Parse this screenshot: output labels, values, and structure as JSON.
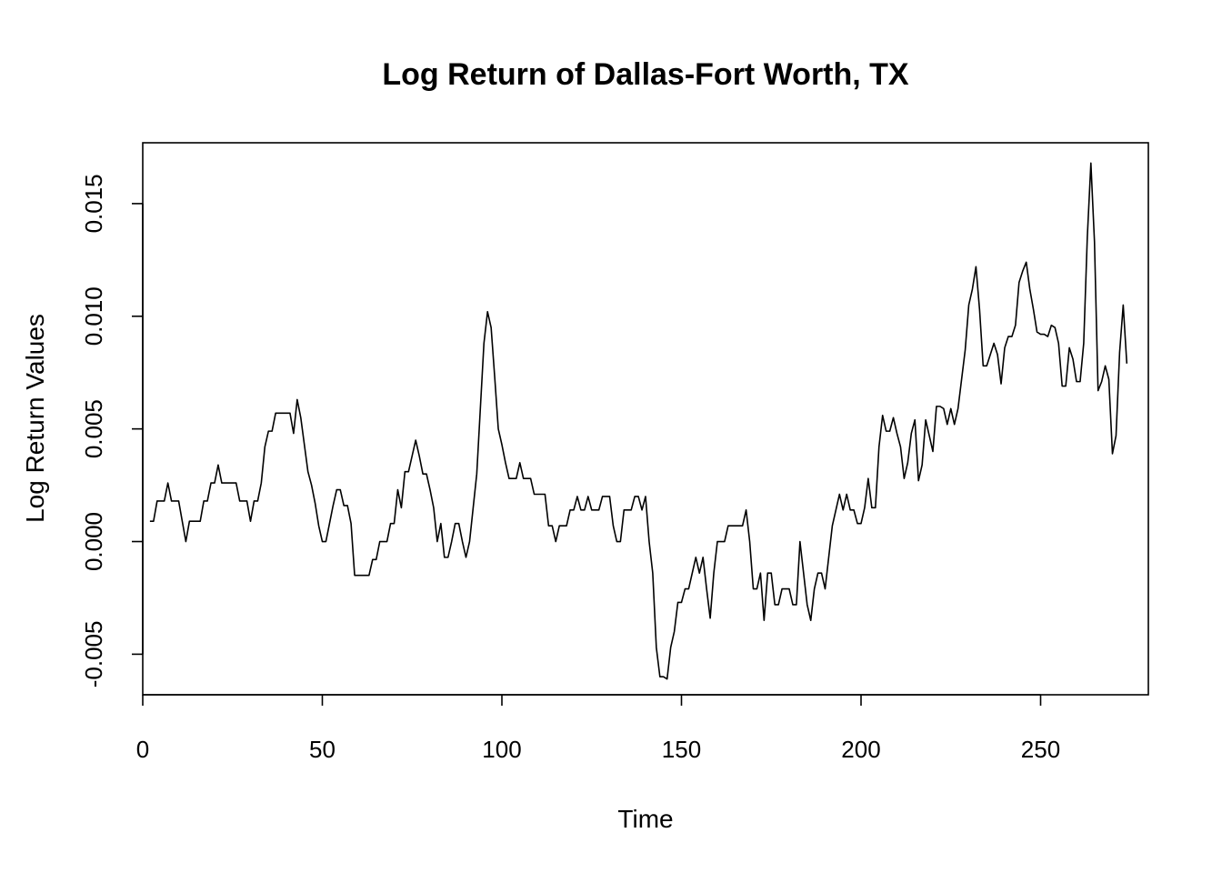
{
  "chart_data": {
    "type": "line",
    "title": "Log Return of Dallas-Fort Worth, TX",
    "xlabel": "Time",
    "ylabel": "Log Return Values",
    "xlim": [
      0,
      280
    ],
    "ylim": [
      -0.0068,
      0.0177
    ],
    "x_ticks": [
      0,
      50,
      100,
      150,
      200,
      250
    ],
    "x_tick_labels": [
      "0",
      "50",
      "100",
      "150",
      "200",
      "250"
    ],
    "y_ticks": [
      -0.005,
      0.0,
      0.005,
      0.01,
      0.015
    ],
    "y_tick_labels": [
      "-0.005",
      "0.000",
      "0.005",
      "0.010",
      "0.015"
    ],
    "grid": false,
    "legend": "none",
    "series": [
      {
        "x_start": 2,
        "values": [
          0.0009,
          0.0009,
          0.0018,
          0.0018,
          0.0018,
          0.0026,
          0.0018,
          0.0018,
          0.0018,
          0.0009,
          0.0,
          0.0009,
          0.0009,
          0.0009,
          0.0009,
          0.0018,
          0.0018,
          0.0026,
          0.0026,
          0.0034,
          0.0026,
          0.0026,
          0.0026,
          0.0026,
          0.0026,
          0.0018,
          0.0018,
          0.0018,
          0.0009,
          0.0018,
          0.0018,
          0.0026,
          0.0042,
          0.0049,
          0.0049,
          0.0057,
          0.0057,
          0.0057,
          0.0057,
          0.0057,
          0.0048,
          0.0063,
          0.0055,
          0.0043,
          0.0031,
          0.0025,
          0.0017,
          0.0007,
          0.0,
          0.0,
          0.0008,
          0.0016,
          0.0023,
          0.0023,
          0.0016,
          0.0016,
          0.0008,
          -0.0015,
          -0.0015,
          -0.0015,
          -0.0015,
          -0.0015,
          -0.0008,
          -0.0008,
          0.0,
          0.0,
          0.0,
          0.0008,
          0.0008,
          0.0023,
          0.0015,
          0.0031,
          0.0031,
          0.0038,
          0.0045,
          0.0038,
          0.003,
          0.003,
          0.0023,
          0.0015,
          0.0,
          0.0008,
          -0.0007,
          -0.0007,
          0.0,
          0.0008,
          0.0008,
          0.0,
          -0.0007,
          0.0,
          0.0015,
          0.003,
          0.0059,
          0.0088,
          0.0102,
          0.0095,
          0.0073,
          0.005,
          0.0043,
          0.0035,
          0.0028,
          0.0028,
          0.0028,
          0.0035,
          0.0028,
          0.0028,
          0.0028,
          0.0021,
          0.0021,
          0.0021,
          0.0021,
          0.0007,
          0.0007,
          0.0,
          0.0007,
          0.0007,
          0.0007,
          0.0014,
          0.0014,
          0.002,
          0.0014,
          0.0014,
          0.002,
          0.0014,
          0.0014,
          0.0014,
          0.002,
          0.002,
          0.002,
          0.0007,
          0.0,
          0.0,
          0.0014,
          0.0014,
          0.0014,
          0.002,
          0.002,
          0.0014,
          0.002,
          0.0,
          -0.0014,
          -0.0047,
          -0.006,
          -0.006,
          -0.0061,
          -0.0047,
          -0.004,
          -0.0027,
          -0.0027,
          -0.0021,
          -0.0021,
          -0.0014,
          -0.0007,
          -0.0014,
          -0.0007,
          -0.0021,
          -0.0034,
          -0.0014,
          0.0,
          0.0,
          0.0,
          0.0007,
          0.0007,
          0.0007,
          0.0007,
          0.0007,
          0.0014,
          0.0,
          -0.0021,
          -0.0021,
          -0.0014,
          -0.0035,
          -0.0014,
          -0.0014,
          -0.0028,
          -0.0028,
          -0.0021,
          -0.0021,
          -0.0021,
          -0.0028,
          -0.0028,
          0.0,
          -0.0014,
          -0.0028,
          -0.0035,
          -0.0021,
          -0.0014,
          -0.0014,
          -0.0021,
          -0.0007,
          0.0007,
          0.0014,
          0.0021,
          0.0014,
          0.0021,
          0.0014,
          0.0014,
          0.0008,
          0.0008,
          0.0015,
          0.0028,
          0.0015,
          0.0015,
          0.0042,
          0.0056,
          0.0049,
          0.0049,
          0.0055,
          0.0048,
          0.0042,
          0.0028,
          0.0035,
          0.0048,
          0.0054,
          0.0027,
          0.0034,
          0.0054,
          0.0047,
          0.004,
          0.006,
          0.006,
          0.0059,
          0.0052,
          0.0059,
          0.0052,
          0.0059,
          0.0072,
          0.0085,
          0.0105,
          0.0112,
          0.0122,
          0.0103,
          0.0078,
          0.0078,
          0.0083,
          0.0088,
          0.0083,
          0.007,
          0.0086,
          0.0091,
          0.0091,
          0.0096,
          0.0115,
          0.012,
          0.0124,
          0.0112,
          0.0103,
          0.0093,
          0.0092,
          0.0092,
          0.0091,
          0.0096,
          0.0095,
          0.0088,
          0.0069,
          0.0069,
          0.0086,
          0.0081,
          0.0071,
          0.0071,
          0.0088,
          0.0135,
          0.0168,
          0.0133,
          0.0067,
          0.0071,
          0.0078,
          0.0072,
          0.0039,
          0.0047,
          0.0084,
          0.0105,
          0.0079
        ]
      }
    ]
  }
}
